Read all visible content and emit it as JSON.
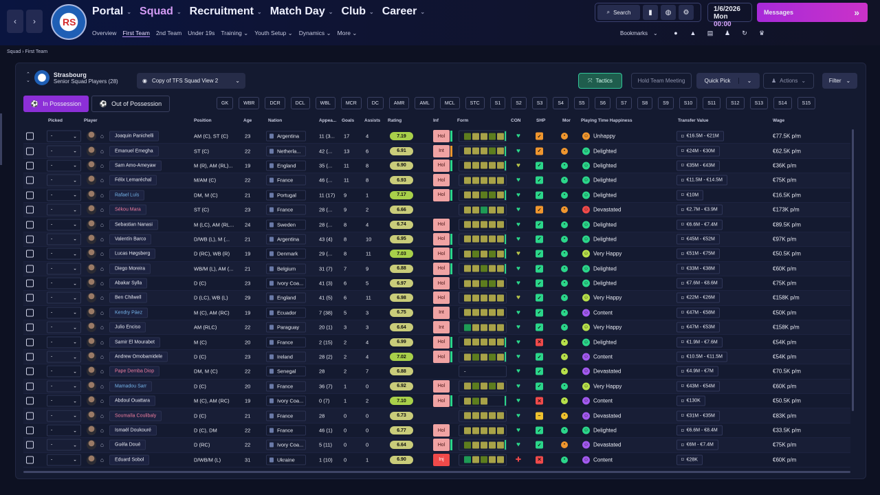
{
  "nav": {
    "back": "‹",
    "forward": "›",
    "main": [
      {
        "label": "Portal",
        "active": false
      },
      {
        "label": "Squad",
        "active": true
      },
      {
        "label": "Recruitment",
        "active": false
      },
      {
        "label": "Match Day",
        "active": false
      },
      {
        "label": "Club",
        "active": false
      },
      {
        "label": "Career",
        "active": false
      }
    ],
    "sub": [
      {
        "label": "Overview",
        "active": false
      },
      {
        "label": "First Team",
        "active": true
      },
      {
        "label": "2nd Team",
        "active": false
      },
      {
        "label": "Under 19s",
        "active": false
      },
      {
        "label": "Training ⌄",
        "active": false
      },
      {
        "label": "Youth Setup ⌄",
        "active": false
      },
      {
        "label": "Dynamics ⌄",
        "active": false
      },
      {
        "label": "More ⌄",
        "active": false
      }
    ]
  },
  "search_label": "Search",
  "date": {
    "day": "1/6/2026",
    "weekday": "Mon",
    "time": "00:00"
  },
  "messages_label": "Messages",
  "bookmarks_label": "Bookmarks",
  "breadcrumb": {
    "a": "Squad",
    "b": "First Team"
  },
  "club": {
    "name": "Strasbourg",
    "subtitle": "Senior Squad Players (28)"
  },
  "view": "Copy of TFS Squad View 2",
  "buttons": {
    "tactics": "Tactics",
    "hold": "Hold Team Meeting",
    "quick": "Quick Pick",
    "actions": "Actions",
    "filter": "Filter",
    "in_possession": "In Possession",
    "out_possession": "Out of Possession"
  },
  "roles": [
    "GK",
    "WBR",
    "DCR",
    "DCL",
    "WBL",
    "MCR",
    "DC",
    "AMR",
    "AML",
    "MCL",
    "STC",
    "S1",
    "S2",
    "S3",
    "S4",
    "S5",
    "S6",
    "S7",
    "S8",
    "S9",
    "S10",
    "S11",
    "S12",
    "S13",
    "S14",
    "S15"
  ],
  "columns": {
    "picked": "Picked",
    "player": "Player",
    "position": "Position",
    "age": "Age",
    "nation": "Nation",
    "apps": "Appea...",
    "goals": "Goals",
    "assists": "Assists",
    "rating": "Rating",
    "inf": "Inf",
    "form": "Form",
    "con": "CON",
    "shp": "SHP",
    "mor": "Mor",
    "pth": "Playing Time Happiness",
    "tv": "Transfer Value",
    "wage": "Wage"
  },
  "colors": {
    "accent": "#8c2fd7",
    "tactics": "#32c59a",
    "rating_good": "#a8d04a",
    "rating": "#c9cc7a",
    "hol": "#f0a3a3",
    "inj": "#f04a4a"
  },
  "players": [
    {
      "name": "Joaquin Panichelli",
      "style": "",
      "pos": "AM (C), ST (C)",
      "age": "23",
      "nation": "Argentina",
      "apps": "11 (3...",
      "goals": "17",
      "assists": "4",
      "rating": "7.19",
      "hi": true,
      "inf": "Hol",
      "infbar": "#2bd68a",
      "form": "GYYGY",
      "con": "♥",
      "con_color": "#2bd68a",
      "shp": "#f0962e",
      "mor": "#f0962e",
      "pth": "Unhappy",
      "face": "#f0962e",
      "tv": "€16.5M - €21M",
      "wage": "€77.5K p/m"
    },
    {
      "name": "Emanuel Emegha",
      "style": "",
      "pos": "ST (C)",
      "age": "22",
      "nation": "Netherla...",
      "apps": "42 (...",
      "goals": "13",
      "assists": "6",
      "rating": "6.91",
      "hi": false,
      "inf": "Int",
      "infbar": "#f0962e",
      "form": "YYYGY",
      "con": "♥",
      "con_color": "#2bd68a",
      "shp": "#f0962e",
      "mor": "#f0962e",
      "pth": "Delighted",
      "face": "#2bd68a",
      "tv": "€24M - €30M",
      "wage": "€62.5K p/m"
    },
    {
      "name": "Sam Amo-Ameyaw",
      "style": "",
      "pos": "M (R), AM (RL)...",
      "age": "19",
      "nation": "England",
      "apps": "35 (...",
      "goals": "11",
      "assists": "8",
      "rating": "6.90",
      "hi": false,
      "inf": "Hol",
      "infbar": "#2bd68a",
      "form": "YYYYY",
      "con": "♥",
      "con_color": "#b7c44a",
      "shp": "#2bd68a",
      "mor": "#2bd68a",
      "pth": "Delighted",
      "face": "#2bd68a",
      "tv": "€35M - €43M",
      "wage": "€36K p/m"
    },
    {
      "name": "Félix Lemaréchal",
      "style": "",
      "pos": "M/AM (C)",
      "age": "22",
      "nation": "France",
      "apps": "46 (...",
      "goals": "11",
      "assists": "8",
      "rating": "6.93",
      "hi": false,
      "inf": "Hol",
      "infbar": "",
      "form": "YYYYY",
      "con": "♥",
      "con_color": "#2bd68a",
      "shp": "#2bd68a",
      "mor": "#2bd68a",
      "pth": "Delighted",
      "face": "#2bd68a",
      "tv": "€11.5M - €14.5M",
      "wage": "€75K p/m"
    },
    {
      "name": "Rafael Luís",
      "style": "blue",
      "pos": "DM, M (C)",
      "age": "21",
      "nation": "Portugal",
      "apps": "11 (17)",
      "goals": "9",
      "assists": "1",
      "rating": "7.17",
      "hi": true,
      "inf": "Hol",
      "infbar": "#2bd68a",
      "form": "YYGGY",
      "con": "♥",
      "con_color": "#2bd68a",
      "shp": "#2bd68a",
      "mor": "#2bd68a",
      "pth": "Delighted",
      "face": "#2bd68a",
      "tv": "€10M",
      "wage": "€16.5K p/m"
    },
    {
      "name": "Sékou Mara",
      "style": "red",
      "pos": "ST (C)",
      "age": "23",
      "nation": "France",
      "apps": "28 (...",
      "goals": "9",
      "assists": "2",
      "rating": "6.66",
      "hi": false,
      "inf": "",
      "infbar": "",
      "form": "YYDYY",
      "con": "♥",
      "con_color": "#2bd68a",
      "shp": "#f0962e",
      "mor": "#f0962e",
      "pth": "Devastated",
      "face": "#f04a4a",
      "tv": "€2.7M - €3.9M",
      "wage": "€173K p/m"
    },
    {
      "name": "Sebastian Nanasi",
      "style": "",
      "pos": "M (LC), AM (RL...",
      "age": "24",
      "nation": "Sweden",
      "apps": "28 (...",
      "goals": "8",
      "assists": "4",
      "rating": "6.74",
      "hi": false,
      "inf": "Hol",
      "infbar": "",
      "form": "YYYYY",
      "con": "♥",
      "con_color": "#2bd68a",
      "shp": "#2bd68a",
      "mor": "#2bd68a",
      "pth": "Delighted",
      "face": "#2bd68a",
      "tv": "€6.6M - €7.4M",
      "wage": "€89.5K p/m"
    },
    {
      "name": "Valentín Barco",
      "style": "",
      "pos": "D/WB (L), M (...",
      "age": "21",
      "nation": "Argentina",
      "apps": "43 (4)",
      "goals": "8",
      "assists": "10",
      "rating": "6.95",
      "hi": false,
      "inf": "Hol",
      "infbar": "#2bd68a",
      "form": "YYYYY",
      "con": "♥",
      "con_color": "#2bd68a",
      "shp": "#2bd68a",
      "mor": "#2bd68a",
      "pth": "Delighted",
      "face": "#2bd68a",
      "tv": "€45M - €52M",
      "wage": "€97K p/m"
    },
    {
      "name": "Lucas Høgsberg",
      "style": "",
      "pos": "D (RC), WB (R)",
      "age": "19",
      "nation": "Denmark",
      "apps": "29 (...",
      "goals": "8",
      "assists": "11",
      "rating": "7.03",
      "hi": true,
      "inf": "Hol",
      "infbar": "#2bd68a",
      "form": "YGYGY",
      "con": "♥",
      "con_color": "#b7c44a",
      "shp": "#2bd68a",
      "mor": "#2bd68a",
      "pth": "Very Happy",
      "face": "#b7e04a",
      "tv": "€51M - €75M",
      "wage": "€50.5K p/m"
    },
    {
      "name": "Diego Moreira",
      "style": "",
      "pos": "WB/M (L), AM (...",
      "age": "21",
      "nation": "Belgium",
      "apps": "31 (7)",
      "goals": "7",
      "assists": "9",
      "rating": "6.88",
      "hi": false,
      "inf": "Hol",
      "infbar": "#2bd68a",
      "form": "YYGYY",
      "con": "♥",
      "con_color": "#2bd68a",
      "shp": "#2bd68a",
      "mor": "#2bd68a",
      "pth": "Delighted",
      "face": "#2bd68a",
      "tv": "€33M - €38M",
      "wage": "€60K p/m"
    },
    {
      "name": "Abakar Sylla",
      "style": "",
      "pos": "D (C)",
      "age": "23",
      "nation": "Ivory Coa...",
      "apps": "41 (3)",
      "goals": "6",
      "assists": "5",
      "rating": "6.97",
      "hi": false,
      "inf": "Hol",
      "infbar": "",
      "form": "YYGGY",
      "con": "♥",
      "con_color": "#2bd68a",
      "shp": "#2bd68a",
      "mor": "#2bd68a",
      "pth": "Delighted",
      "face": "#2bd68a",
      "tv": "€7.6M - €8.6M",
      "wage": "€75K p/m"
    },
    {
      "name": "Ben Chilwell",
      "style": "",
      "pos": "D (LC), WB (L)",
      "age": "29",
      "nation": "England",
      "apps": "41 (5)",
      "goals": "6",
      "assists": "11",
      "rating": "6.98",
      "hi": false,
      "inf": "Hol",
      "infbar": "",
      "form": "YYYYY",
      "con": "♥",
      "con_color": "#b7c44a",
      "shp": "#2bd68a",
      "mor": "#2bd68a",
      "pth": "Very Happy",
      "face": "#b7e04a",
      "tv": "€22M - €26M",
      "wage": "€158K p/m"
    },
    {
      "name": "Kendry Páez",
      "style": "blue",
      "pos": "M (C), AM (RC)",
      "age": "19",
      "nation": "Ecuador",
      "apps": "7 (38)",
      "goals": "5",
      "assists": "3",
      "rating": "6.75",
      "hi": false,
      "inf": "Int",
      "infbar": "",
      "form": "YYYYY",
      "con": "♥",
      "con_color": "#2bd68a",
      "shp": "#2bd68a",
      "mor": "#2bd68a",
      "pth": "Content",
      "face": "#a35af0",
      "tv": "€47M - €58M",
      "wage": "€50K p/m"
    },
    {
      "name": "Julio Enciso",
      "style": "",
      "pos": "AM (RLC)",
      "age": "22",
      "nation": "Paraguay",
      "apps": "20 (1)",
      "goals": "3",
      "assists": "3",
      "rating": "6.64",
      "hi": false,
      "inf": "Int",
      "infbar": "",
      "form": "DYYYY",
      "con": "♥",
      "con_color": "#2bd68a",
      "shp": "#2bd68a",
      "mor": "#2bd68a",
      "pth": "Very Happy",
      "face": "#b7e04a",
      "tv": "€47M - €53M",
      "wage": "€158K p/m"
    },
    {
      "name": "Samir El Mourabet",
      "style": "",
      "pos": "M (C)",
      "age": "20",
      "nation": "France",
      "apps": "2 (15)",
      "goals": "2",
      "assists": "4",
      "rating": "6.99",
      "hi": false,
      "inf": "Hol",
      "infbar": "#2bd68a",
      "form": "YYYYY",
      "con": "♥",
      "con_color": "#2bd68a",
      "shp": "#f04a4a",
      "mor": "#b7e04a",
      "pth": "Delighted",
      "face": "#2bd68a",
      "tv": "€1.9M - €7.6M",
      "wage": "€54K p/m"
    },
    {
      "name": "Andrew Omobamidele",
      "style": "",
      "pos": "D (C)",
      "age": "23",
      "nation": "Ireland",
      "apps": "28 (2)",
      "goals": "2",
      "assists": "4",
      "rating": "7.02",
      "hi": true,
      "inf": "Hol",
      "infbar": "#2bd68a",
      "form": "YGYGY",
      "con": "♥",
      "con_color": "#2bd68a",
      "shp": "#2bd68a",
      "mor": "#b7e04a",
      "pth": "Content",
      "face": "#a35af0",
      "tv": "€10.5M - €11.5M",
      "wage": "€54K p/m"
    },
    {
      "name": "Pape Demba Diop",
      "style": "red",
      "pos": "DM, M (C)",
      "age": "22",
      "nation": "Senegal",
      "apps": "28",
      "goals": "2",
      "assists": "7",
      "rating": "6.88",
      "hi": false,
      "inf": "",
      "infbar": "",
      "form": "-",
      "con": "♥",
      "con_color": "#2bd68a",
      "shp": "#2bd68a",
      "mor": "#b7e04a",
      "pth": "Devastated",
      "face": "#a35af0",
      "tv": "€4.9M - €7M",
      "wage": "€70.5K p/m"
    },
    {
      "name": "Mamadou Sarr",
      "style": "blue",
      "pos": "D (C)",
      "age": "20",
      "nation": "France",
      "apps": "36 (7)",
      "goals": "1",
      "assists": "0",
      "rating": "6.92",
      "hi": false,
      "inf": "Hol",
      "infbar": "",
      "form": "YGYGY",
      "con": "♥",
      "con_color": "#2bd68a",
      "shp": "#2bd68a",
      "mor": "#2bd68a",
      "pth": "Very Happy",
      "face": "#b7e04a",
      "tv": "€43M - €54M",
      "wage": "€60K p/m"
    },
    {
      "name": "Abdoul Ouattara",
      "style": "",
      "pos": "M (C), AM (RC)",
      "age": "19",
      "nation": "Ivory Coa...",
      "apps": "0 (7)",
      "goals": "1",
      "assists": "2",
      "rating": "7.10",
      "hi": true,
      "inf": "Hol",
      "infbar": "#2bd68a",
      "form": "YGY",
      "con": "♥",
      "con_color": "#2bd68a",
      "shp": "#f04a4a",
      "mor": "#b7e04a",
      "pth": "Content",
      "face": "#a35af0",
      "tv": "€130K",
      "wage": "€50.5K p/m"
    },
    {
      "name": "Soumaïla Coulibaly",
      "style": "red",
      "pos": "D (C)",
      "age": "21",
      "nation": "France",
      "apps": "28",
      "goals": "0",
      "assists": "0",
      "rating": "6.73",
      "hi": false,
      "inf": "",
      "infbar": "",
      "form": "YYYYY",
      "con": "♥",
      "con_color": "#2bd68a",
      "shp": "#f0c22e",
      "mor": "#f0c22e",
      "pth": "Devastated",
      "face": "#a35af0",
      "tv": "€31M - €35M",
      "wage": "€83K p/m"
    },
    {
      "name": "Ismaël Doukouré",
      "style": "",
      "pos": "D (C), DM",
      "age": "22",
      "nation": "France",
      "apps": "46 (1)",
      "goals": "0",
      "assists": "0",
      "rating": "6.77",
      "hi": false,
      "inf": "Hol",
      "infbar": "",
      "form": "YYYYY",
      "con": "♥",
      "con_color": "#2bd68a",
      "shp": "#2bd68a",
      "mor": "#2bd68a",
      "pth": "Delighted",
      "face": "#2bd68a",
      "tv": "€6.6M - €8.4M",
      "wage": "€33.5K p/m"
    },
    {
      "name": "Guéla Doué",
      "style": "",
      "pos": "D (RC)",
      "age": "22",
      "nation": "Ivory Coa...",
      "apps": "5 (11)",
      "goals": "0",
      "assists": "0",
      "rating": "6.64",
      "hi": false,
      "inf": "Hol",
      "infbar": "#2bd68a",
      "form": "GYYYY",
      "con": "♥",
      "con_color": "#2bd68a",
      "shp": "#2bd68a",
      "mor": "#f0962e",
      "pth": "Devastated",
      "face": "#a35af0",
      "tv": "€6M - €7.4M",
      "wage": "€75K p/m"
    },
    {
      "name": "Eduard Sobol",
      "style": "",
      "pos": "D/WB/M (L)",
      "age": "31",
      "nation": "Ukraine",
      "apps": "1 (10)",
      "goals": "0",
      "assists": "1",
      "rating": "6.90",
      "hi": false,
      "inf": "Inj",
      "infbar": "",
      "form": "DYGYY",
      "con": "✚",
      "con_color": "#f04a4a",
      "shp": "#f04a4a",
      "mor": "#2bd68a",
      "pth": "Content",
      "face": "#a35af0",
      "tv": "€28K",
      "wage": "€60K p/m"
    }
  ]
}
